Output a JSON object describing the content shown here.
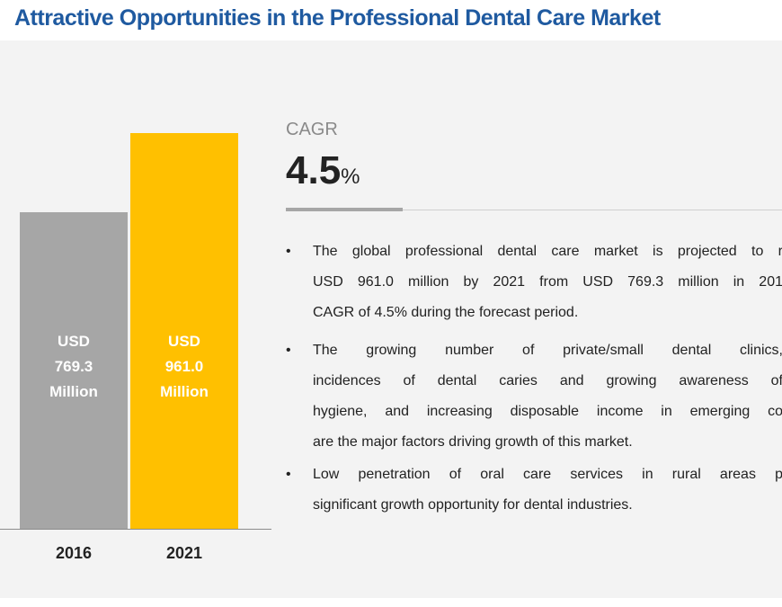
{
  "title": "Attractive Opportunities in the Professional Dental Care Market",
  "chart_data": {
    "type": "bar",
    "categories": [
      "2016",
      "2021"
    ],
    "values": [
      769.3,
      961.0
    ],
    "value_labels": [
      "USD 769.3 Million",
      "USD 961.0 Million"
    ],
    "colors": [
      "#a6a6a6",
      "#ffc000"
    ]
  },
  "cagr": {
    "label": "CAGR",
    "value": "4.5",
    "unit": "%"
  },
  "bullets": [
    [
      "The global professional dental care market is projected to r",
      "USD 961.0 million by 2021 from USD 769.3 million in 201",
      "CAGR of 4.5% during the forecast period."
    ],
    [
      "The growing number of private/small dental clinics,",
      "incidences of dental caries and growing awareness of",
      "hygiene, and increasing disposable income in emerging co",
      "are the major factors driving growth of this market."
    ],
    [
      "Low penetration of oral care services in rural areas p",
      "significant growth opportunity for dental industries."
    ]
  ]
}
